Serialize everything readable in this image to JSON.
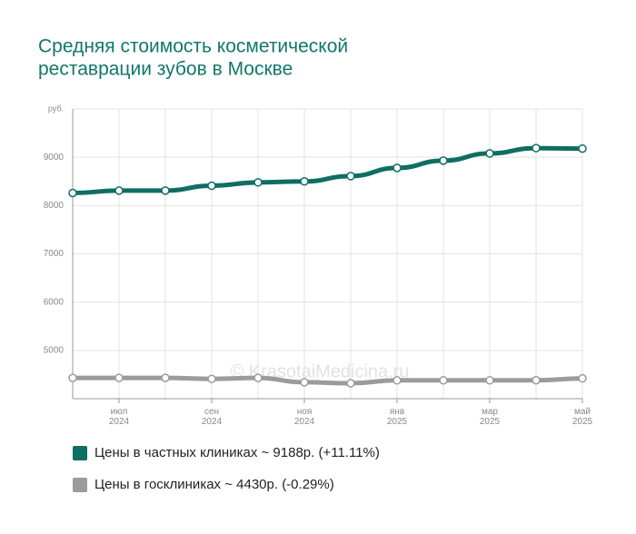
{
  "chart_data": {
    "type": "line",
    "title": [
      "Средняя стоимость косметической",
      "реставрации зубов в Москве"
    ],
    "watermark": "© KrasotaiMedicina.ru",
    "categories": [
      null,
      [
        "июл",
        "2024"
      ],
      null,
      [
        "сен",
        "2024"
      ],
      null,
      [
        "ноя",
        "2024"
      ],
      null,
      [
        "янв",
        "2025"
      ],
      null,
      [
        "мар",
        "2025"
      ],
      null,
      [
        "май",
        "2025"
      ]
    ],
    "series": [
      {
        "name": "Цены в частных клиниках ~ 9188р. (+11.11%)",
        "color": "#0e6e62",
        "values": [
          8260,
          8310,
          8310,
          8410,
          8480,
          8500,
          8610,
          8780,
          8930,
          9080,
          9190,
          9180
        ]
      },
      {
        "name": "Цены в госклиниках ~ 4430р. (-0.29%)",
        "color": "#9b9b9b",
        "values": [
          4430,
          4430,
          4430,
          4410,
          4430,
          4340,
          4320,
          4380,
          4380,
          4380,
          4380,
          4420
        ]
      }
    ],
    "ylim": [
      4000,
      10000
    ],
    "yticks": [
      {
        "value": 10000,
        "label": "руб."
      },
      9000,
      8000,
      7000,
      6000,
      5000
    ],
    "grid": true
  }
}
